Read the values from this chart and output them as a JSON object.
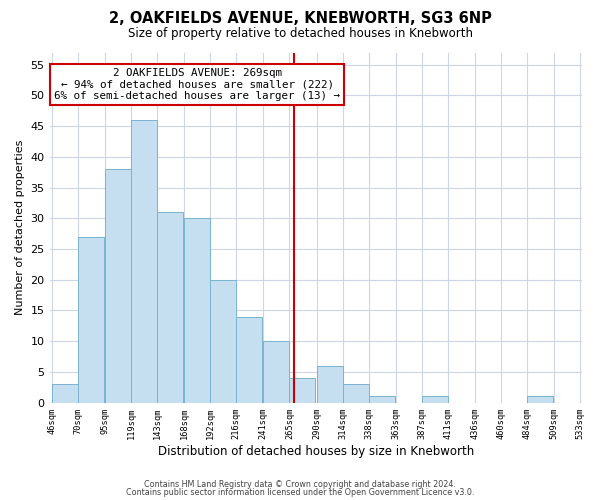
{
  "title": "2, OAKFIELDS AVENUE, KNEBWORTH, SG3 6NP",
  "subtitle": "Size of property relative to detached houses in Knebworth",
  "xlabel": "Distribution of detached houses by size in Knebworth",
  "ylabel": "Number of detached properties",
  "bar_left_edges": [
    46,
    70,
    95,
    119,
    143,
    168,
    192,
    216,
    241,
    265,
    290,
    314,
    338,
    363,
    387,
    411,
    436,
    460,
    484,
    509
  ],
  "bar_heights": [
    3,
    27,
    38,
    46,
    31,
    30,
    20,
    14,
    10,
    4,
    6,
    3,
    1,
    0,
    1,
    0,
    0,
    0,
    1,
    0
  ],
  "bin_width": 24,
  "bar_color": "#c5dff0",
  "bar_edgecolor": "#7ab4d0",
  "vline_x": 269,
  "vline_color": "#cc0000",
  "annotation_title": "2 OAKFIELDS AVENUE: 269sqm",
  "annotation_line1": "← 94% of detached houses are smaller (222)",
  "annotation_line2": "6% of semi-detached houses are larger (13) →",
  "annotation_box_color": "#ffffff",
  "annotation_box_edgecolor": "#cc0000",
  "tick_labels": [
    "46sqm",
    "70sqm",
    "95sqm",
    "119sqm",
    "143sqm",
    "168sqm",
    "192sqm",
    "216sqm",
    "241sqm",
    "265sqm",
    "290sqm",
    "314sqm",
    "338sqm",
    "363sqm",
    "387sqm",
    "411sqm",
    "436sqm",
    "460sqm",
    "484sqm",
    "509sqm",
    "533sqm"
  ],
  "ylim": [
    0,
    57
  ],
  "yticks": [
    0,
    5,
    10,
    15,
    20,
    25,
    30,
    35,
    40,
    45,
    50,
    55
  ],
  "footer_line1": "Contains HM Land Registry data © Crown copyright and database right 2024.",
  "footer_line2": "Contains public sector information licensed under the Open Government Licence v3.0.",
  "background_color": "#ffffff",
  "grid_color": "#ccd6e8",
  "xlim_min": 44,
  "xlim_max": 535
}
